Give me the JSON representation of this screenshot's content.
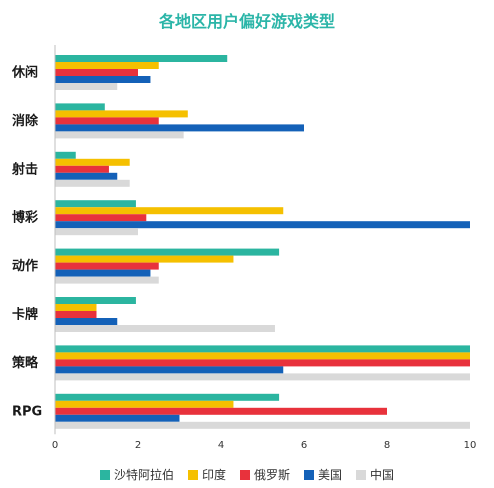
{
  "chart_data": {
    "type": "bar",
    "orientation": "horizontal",
    "title": "各地区用户偏好游戏类型",
    "categories": [
      "休闲",
      "消除",
      "射击",
      "博彩",
      "动作",
      "卡牌",
      "策略",
      "RPG"
    ],
    "series": [
      {
        "name": "沙特阿拉伯",
        "color": "#2bb5a0",
        "values": [
          4.15,
          1.2,
          0.5,
          1.95,
          5.4,
          1.95,
          10,
          5.4
        ]
      },
      {
        "name": "印度",
        "color": "#f5c000",
        "values": [
          2.5,
          3.2,
          1.8,
          5.5,
          4.3,
          1.0,
          10,
          4.3
        ]
      },
      {
        "name": "俄罗斯",
        "color": "#e8323c",
        "values": [
          2.0,
          2.5,
          1.3,
          2.2,
          2.5,
          1.0,
          10,
          8.0
        ]
      },
      {
        "name": "美国",
        "color": "#1461b8",
        "values": [
          2.3,
          6.0,
          1.5,
          10.0,
          2.3,
          1.5,
          5.5,
          3.0
        ]
      },
      {
        "name": "中国",
        "color": "#d9d9d9",
        "values": [
          1.5,
          3.1,
          1.8,
          2.0,
          2.5,
          5.3,
          10,
          10
        ]
      }
    ],
    "xlim": [
      0,
      10
    ],
    "xticks": [
      "0",
      "2",
      "4",
      "6",
      "8",
      "10"
    ],
    "grid": false,
    "legend_position": "bottom"
  }
}
